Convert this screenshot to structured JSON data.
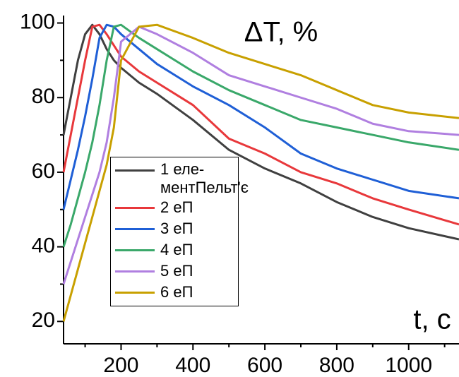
{
  "chart_data": {
    "type": "line",
    "annotations": [
      "ΔT, %",
      "t, c"
    ],
    "x": [
      40,
      60,
      80,
      100,
      120,
      140,
      160,
      180,
      200,
      250,
      300,
      400,
      500,
      600,
      700,
      800,
      900,
      1000,
      1140
    ],
    "series": [
      {
        "name": "1 еле-\nментПельт'є",
        "color": "#404040",
        "values": [
          70,
          80,
          90,
          97,
          99.5,
          97,
          93,
          90,
          88,
          84,
          81,
          74,
          66,
          61,
          57,
          52,
          48,
          45,
          42
        ]
      },
      {
        "name": "2 еП",
        "color": "#e8383b",
        "values": [
          60,
          70,
          80,
          90,
          99,
          99.5,
          97,
          94,
          91,
          87,
          84,
          78,
          69,
          65,
          60,
          57,
          53,
          50,
          46
        ]
      },
      {
        "name": "3 еП",
        "color": "#1f5fd6",
        "values": [
          50,
          58,
          66,
          75,
          85,
          96,
          99.5,
          99,
          97,
          93,
          89,
          83,
          78,
          72,
          65,
          61,
          58,
          55,
          53
        ]
      },
      {
        "name": "4 еП",
        "color": "#3aa86a",
        "values": [
          40,
          46,
          53,
          60,
          68,
          78,
          90,
          99,
          99.5,
          96,
          93,
          87,
          82,
          78,
          74,
          72,
          70,
          68,
          66
        ]
      },
      {
        "name": "5 еП",
        "color": "#b07fe0",
        "values": [
          30,
          36,
          42,
          48,
          54,
          60,
          68,
          80,
          95,
          99,
          97,
          92,
          86,
          83,
          80,
          77,
          73,
          71,
          70
        ]
      },
      {
        "name": "6 еП",
        "color": "#c8a000",
        "values": [
          20,
          27,
          34,
          41,
          48,
          55,
          62,
          72,
          90,
          99,
          99.5,
          96,
          92,
          89,
          86,
          82,
          78,
          76,
          74.5
        ]
      }
    ],
    "xlim": [
      40,
      1140
    ],
    "ylim": [
      14,
      102
    ],
    "xticks": [
      200,
      400,
      600,
      800,
      1000
    ],
    "yticks": [
      20,
      40,
      60,
      80,
      100
    ],
    "xminorticks": [
      100,
      300,
      500,
      700,
      900,
      1100
    ],
    "yminorticks": [
      30,
      50,
      70,
      90
    ],
    "grid": false
  }
}
